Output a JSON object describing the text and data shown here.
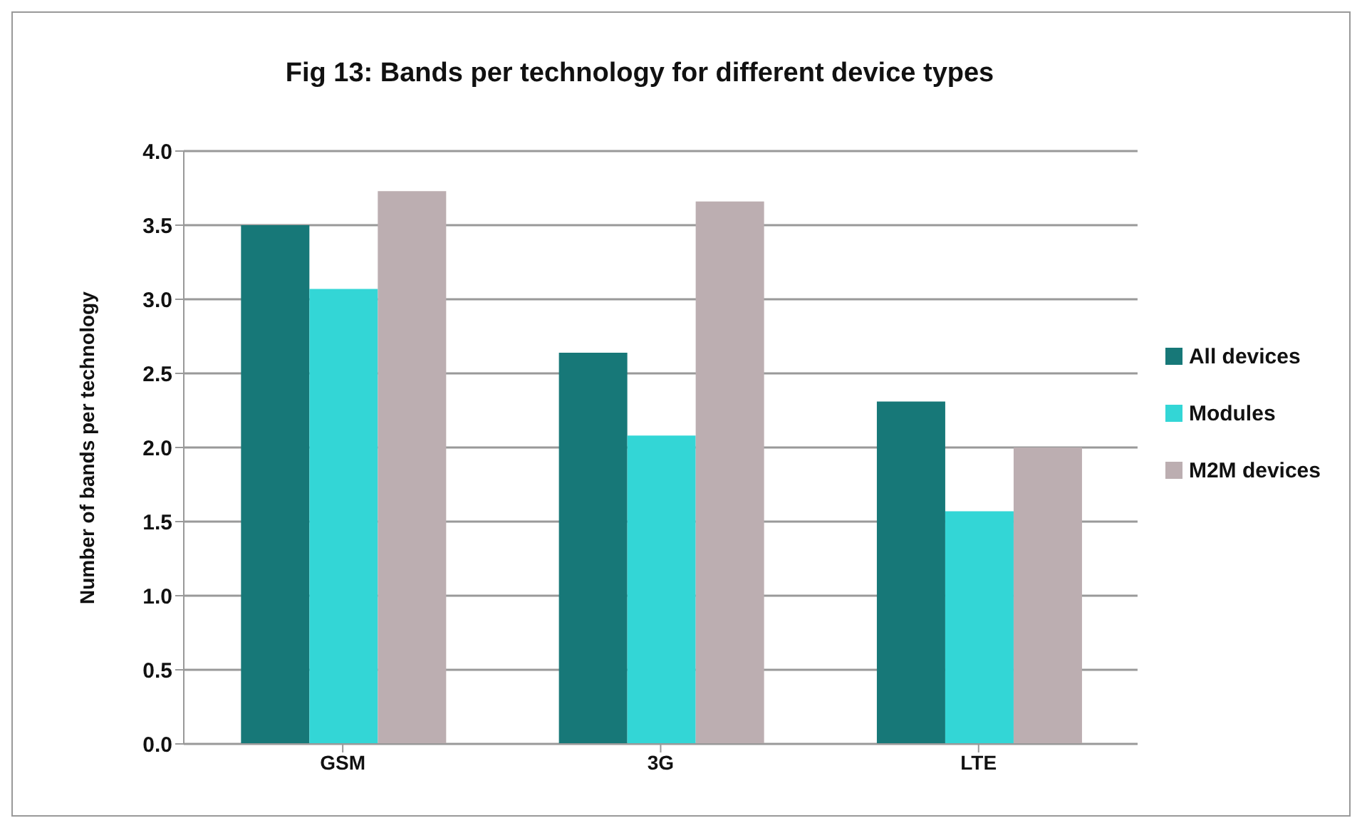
{
  "chart_data": {
    "type": "bar",
    "title": "Fig 13: Bands per technology for different device types",
    "ylabel": "Number of bands per technology",
    "categories": [
      "GSM",
      "3G",
      "LTE"
    ],
    "series": [
      {
        "name": "All devices",
        "color": "#177878",
        "values": [
          3.5,
          2.64,
          2.31
        ]
      },
      {
        "name": "Modules",
        "color": "#33d6d6",
        "values": [
          3.07,
          2.08,
          1.57
        ]
      },
      {
        "name": "M2M devices",
        "color": "#bcaeb1",
        "values": [
          3.73,
          3.66,
          2.0
        ]
      }
    ],
    "ylim": [
      0,
      4
    ],
    "yticks": [
      {
        "value": 0,
        "label": "0.0"
      },
      {
        "value": 0.5,
        "label": "0.5"
      },
      {
        "value": 1,
        "label": "1.0"
      },
      {
        "value": 1.5,
        "label": "1.5"
      },
      {
        "value": 2,
        "label": "2.0"
      },
      {
        "value": 2.5,
        "label": "2.5"
      },
      {
        "value": 3,
        "label": "3.0"
      },
      {
        "value": 3.5,
        "label": "3.5"
      },
      {
        "value": 4,
        "label": "4.0"
      }
    ],
    "grid": "y",
    "legend": "right"
  }
}
